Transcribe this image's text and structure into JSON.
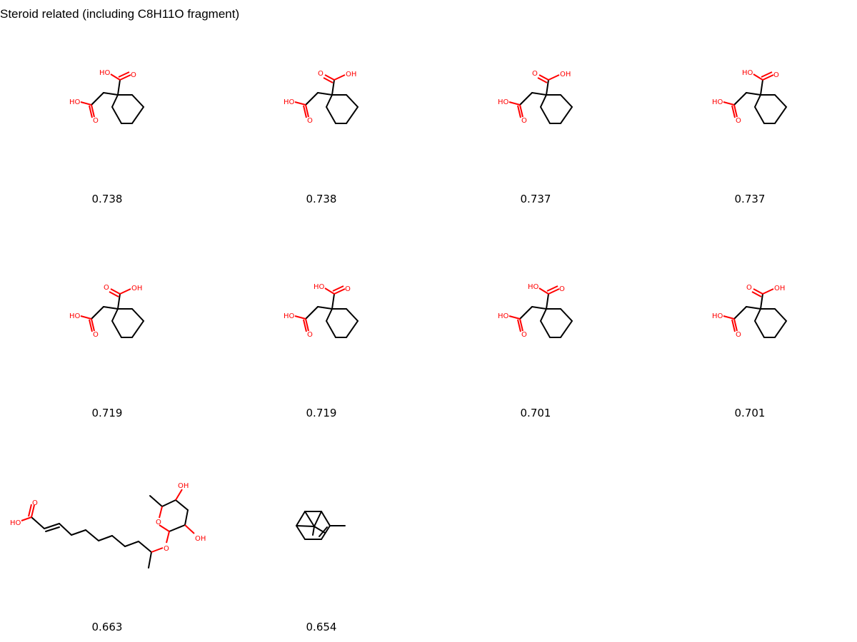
{
  "title": "Steroid related (including C8H11O fragment)",
  "atom_color": "#ff0000",
  "bond_color": "#000000",
  "molecules": [
    {
      "score": "0.738",
      "variant": "A",
      "labels": {
        "hoA": "HO",
        "oA": "O",
        "hoB": "HO",
        "oB": "O"
      }
    },
    {
      "score": "0.738",
      "variant": "B",
      "labels": {
        "oA": "O",
        "ohA": "OH",
        "hoB": "HO",
        "oB": "O"
      }
    },
    {
      "score": "0.737",
      "variant": "B",
      "labels": {
        "oA": "O",
        "ohA": "OH",
        "hoB": "HO",
        "oB": "O"
      }
    },
    {
      "score": "0.737",
      "variant": "A",
      "labels": {
        "hoA": "HO",
        "oA": "O",
        "hoB": "HO",
        "oB": "O"
      }
    },
    {
      "score": "0.719",
      "variant": "B",
      "labels": {
        "oA": "O",
        "ohA": "OH",
        "hoB": "HO",
        "oB": "O"
      }
    },
    {
      "score": "0.719",
      "variant": "A",
      "labels": {
        "hoA": "HO",
        "oA": "O",
        "hoB": "HO",
        "oB": "O"
      }
    },
    {
      "score": "0.701",
      "variant": "A",
      "labels": {
        "hoA": "HO",
        "oA": "O",
        "hoB": "HO",
        "oB": "O"
      }
    },
    {
      "score": "0.701",
      "variant": "B",
      "labels": {
        "oA": "O",
        "ohA": "OH",
        "hoB": "HO",
        "oB": "O"
      }
    },
    {
      "score": "0.663",
      "variant": "glycoside",
      "labels": {
        "o1": "O",
        "ho1": "HO",
        "oh1": "OH",
        "oRing": "O",
        "oh2": "OH",
        "oLink": "O"
      }
    },
    {
      "score": "0.654",
      "variant": "pinene",
      "labels": {}
    }
  ]
}
